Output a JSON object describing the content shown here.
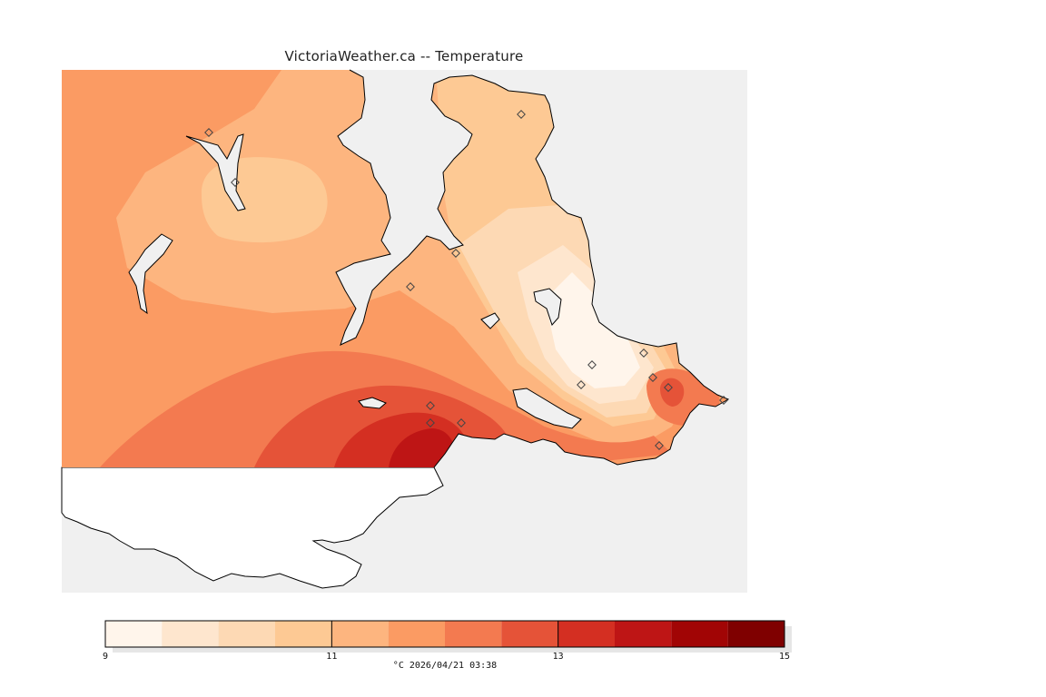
{
  "title": "VictoriaWeather.ca -- Temperature",
  "colors": {
    "sea": "#f0f0f0",
    "land_outside": "#ffffff",
    "coast": "#000000",
    "station": "#444444"
  },
  "legend": {
    "unit_and_time": "°C  2026/04/21 03:38",
    "min": 9,
    "max": 15,
    "ticks": [
      {
        "value": 9,
        "label": "9"
      },
      {
        "value": 11,
        "label": "11"
      },
      {
        "value": 13,
        "label": "13"
      },
      {
        "value": 15,
        "label": "15"
      }
    ],
    "bins": [
      {
        "from": 9.0,
        "to": 9.5,
        "color": "#fff5eb"
      },
      {
        "from": 9.5,
        "to": 10.0,
        "color": "#fee6ce"
      },
      {
        "from": 10.0,
        "to": 10.5,
        "color": "#fdd9b4"
      },
      {
        "from": 10.5,
        "to": 11.0,
        "color": "#fdc994"
      },
      {
        "from": 11.0,
        "to": 11.5,
        "color": "#fdb57f"
      },
      {
        "from": 11.5,
        "to": 12.0,
        "color": "#fb9b63"
      },
      {
        "from": 12.0,
        "to": 12.5,
        "color": "#f37a50"
      },
      {
        "from": 12.5,
        "to": 13.0,
        "color": "#e55338"
      },
      {
        "from": 13.0,
        "to": 13.5,
        "color": "#d42f22"
      },
      {
        "from": 13.5,
        "to": 14.0,
        "color": "#be1515"
      },
      {
        "from": 14.0,
        "to": 14.5,
        "color": "#a10505"
      },
      {
        "from": 14.5,
        "to": 15.0,
        "color": "#7f0000"
      }
    ]
  }
}
